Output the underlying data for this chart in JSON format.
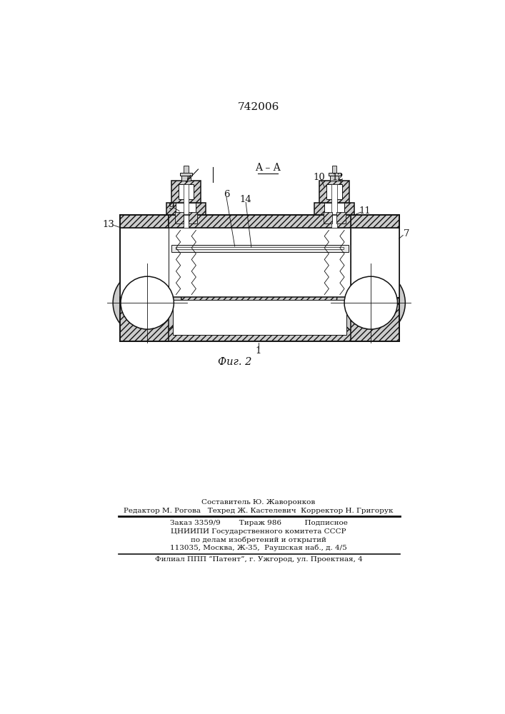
{
  "title": "742006",
  "fig_label": "Фиг. 2",
  "dark": "#111111",
  "metal": "#cccccc",
  "white": "#ffffff",
  "footer_lines": [
    "Составитель Ю. Жаворонков",
    "Редактор М. Рогова   Техред Ж. Кастелевич  Корректор Н. Григорук",
    "Заказ 3359/9        Тираж 986          Подписное",
    "ЦНИИПИ Государственного комитета СССР",
    "по делам изобретений и открытий",
    "113035, Москва, Ж-35,  Раушская наб., д. 4/5",
    "Филиал ППП “Патент”, г. Ужгород, ул. Проектная, 4"
  ]
}
